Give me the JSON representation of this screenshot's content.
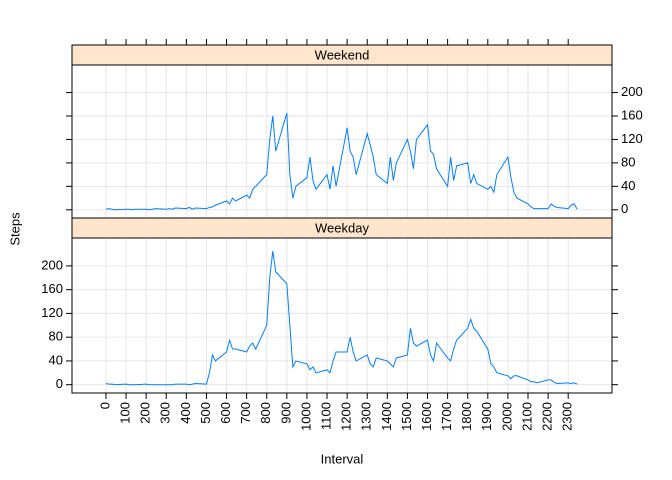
{
  "chart_data": {
    "type": "line",
    "x_label": "Interval",
    "y_label": "Steps",
    "x": [
      0,
      15,
      30,
      45,
      100,
      115,
      130,
      145,
      200,
      215,
      230,
      245,
      300,
      315,
      330,
      345,
      400,
      415,
      430,
      445,
      500,
      515,
      530,
      545,
      600,
      615,
      630,
      645,
      700,
      715,
      730,
      745,
      800,
      815,
      830,
      845,
      900,
      915,
      930,
      945,
      1000,
      1015,
      1030,
      1045,
      1100,
      1115,
      1130,
      1145,
      1200,
      1215,
      1230,
      1245,
      1300,
      1315,
      1330,
      1345,
      1400,
      1415,
      1430,
      1445,
      1500,
      1515,
      1530,
      1545,
      1600,
      1615,
      1630,
      1645,
      1700,
      1715,
      1730,
      1745,
      1800,
      1815,
      1830,
      1845,
      1900,
      1915,
      1930,
      1945,
      2000,
      2015,
      2030,
      2045,
      2100,
      2115,
      2130,
      2145,
      2200,
      2215,
      2230,
      2245,
      2300,
      2315,
      2330,
      2345
    ],
    "series": [
      {
        "name": "Weekend",
        "color": "#0080ff",
        "values": [
          1,
          2,
          1,
          0,
          1,
          1,
          0,
          1,
          1,
          0,
          1,
          2,
          1,
          2,
          1,
          3,
          2,
          4,
          1,
          3,
          2,
          4,
          5,
          8,
          15,
          10,
          20,
          15,
          25,
          20,
          35,
          40,
          60,
          120,
          160,
          100,
          165,
          60,
          20,
          40,
          55,
          90,
          50,
          35,
          60,
          35,
          75,
          40,
          140,
          100,
          90,
          60,
          130,
          110,
          90,
          60,
          45,
          90,
          50,
          80,
          120,
          100,
          70,
          120,
          145,
          100,
          95,
          70,
          40,
          90,
          50,
          75,
          80,
          45,
          60,
          45,
          35,
          40,
          30,
          60,
          90,
          55,
          30,
          20,
          10,
          5,
          2,
          2,
          2,
          10,
          6,
          4,
          2,
          8,
          10,
          1
        ]
      },
      {
        "name": "Weekday",
        "color": "#0080ff",
        "values": [
          2,
          1,
          1,
          0,
          1,
          0,
          0,
          0,
          1,
          0,
          0,
          0,
          0,
          0,
          0,
          1,
          1,
          0,
          1,
          2,
          1,
          20,
          50,
          40,
          55,
          75,
          60,
          60,
          55,
          65,
          70,
          60,
          100,
          180,
          225,
          190,
          170,
          100,
          30,
          40,
          35,
          25,
          30,
          20,
          25,
          20,
          40,
          55,
          55,
          80,
          55,
          40,
          50,
          35,
          30,
          45,
          40,
          35,
          30,
          45,
          50,
          95,
          70,
          65,
          75,
          50,
          40,
          70,
          45,
          40,
          60,
          75,
          95,
          110,
          95,
          90,
          60,
          35,
          30,
          20,
          15,
          10,
          15,
          15,
          8,
          5,
          5,
          3,
          8,
          8,
          4,
          2,
          3,
          2,
          3,
          1
        ]
      }
    ],
    "xlim": [
      -169,
      2518
    ],
    "ylim": [
      -14,
      247
    ],
    "xticks": [
      0,
      100,
      200,
      300,
      400,
      500,
      600,
      700,
      800,
      900,
      1000,
      1100,
      1200,
      1300,
      1400,
      1500,
      1600,
      1700,
      1800,
      1900,
      2000,
      2100,
      2200,
      2300
    ],
    "yticks": [
      0,
      40,
      80,
      120,
      160,
      200
    ],
    "grid": true
  }
}
